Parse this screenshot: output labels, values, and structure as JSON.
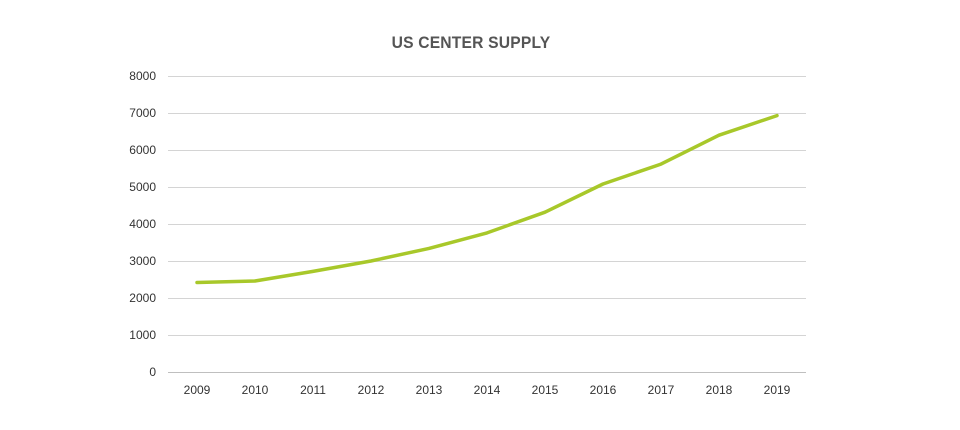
{
  "chart_data": {
    "type": "line",
    "title": "US CENTER SUPPLY",
    "xlabel": "",
    "ylabel": "",
    "categories": [
      "2009",
      "2010",
      "2011",
      "2012",
      "2013",
      "2014",
      "2015",
      "2016",
      "2017",
      "2018",
      "2019"
    ],
    "y_ticks": [
      "0",
      "1000",
      "2000",
      "3000",
      "4000",
      "5000",
      "6000",
      "7000",
      "8000"
    ],
    "ylim": [
      0,
      8000
    ],
    "grid": true,
    "legend": "none",
    "series": [
      {
        "values": [
          2420,
          2460,
          2720,
          3000,
          3340,
          3760,
          4320,
          5080,
          5620,
          6400,
          6930
        ],
        "color": "#a8c82a"
      }
    ]
  }
}
